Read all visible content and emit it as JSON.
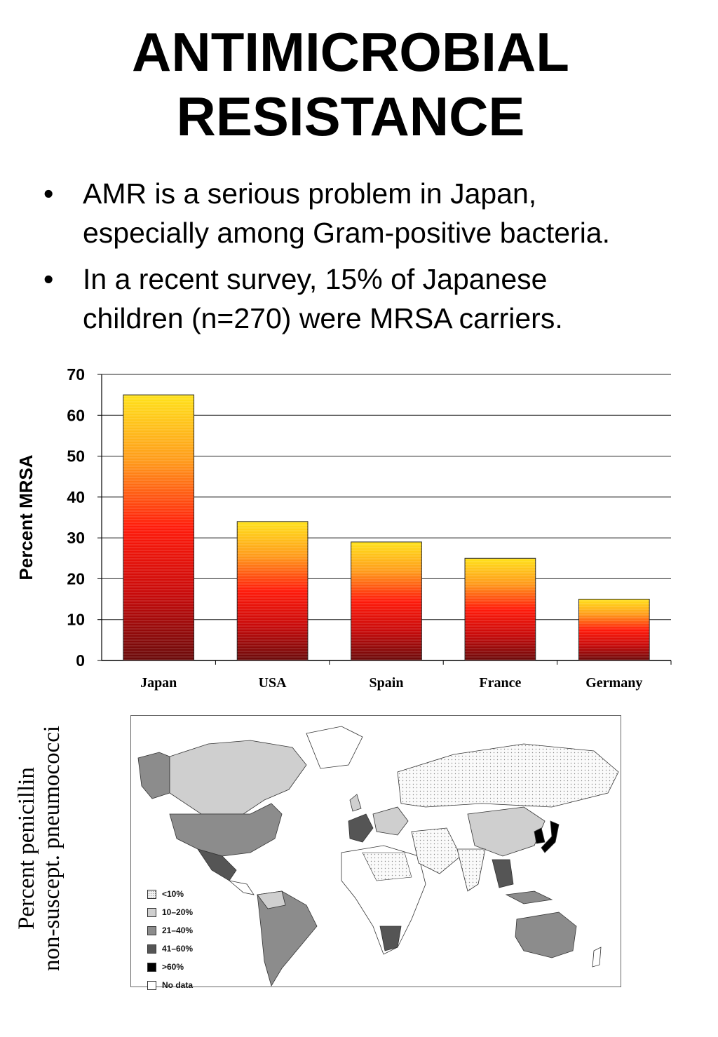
{
  "page": {
    "title_line1": "ANTIMICROBIAL",
    "title_line2": "RESISTANCE",
    "bullets": [
      {
        "line1": "AMR is a serious problem in Japan,",
        "line2": "especially among Gram-positive bacteria."
      },
      {
        "line1": "In a recent survey, 15% of Japanese",
        "line2": "children (n=270) were MRSA carriers."
      }
    ],
    "bullet_char": "•"
  },
  "chart_data": {
    "type": "bar",
    "categories": [
      "Japan",
      "USA",
      "Spain",
      "France",
      "Germany"
    ],
    "values": [
      65,
      34,
      29,
      25,
      15
    ],
    "title": "",
    "xlabel": "",
    "ylabel": "Percent MRSA",
    "ylim": [
      0,
      70
    ],
    "yticks": [
      0,
      10,
      20,
      30,
      40,
      50,
      60,
      70
    ],
    "grid": true,
    "bar_gradient": [
      "#ffe21a",
      "#ff9a1a",
      "#ff1a0a",
      "#c80a0a",
      "#6a0a0a"
    ]
  },
  "map": {
    "side_label_line1": "Percent penicillin",
    "side_label_line2": "non-suscept. pneumococci",
    "legend": [
      {
        "label": "<10%",
        "color": "#f2f2f2",
        "pattern": "dots"
      },
      {
        "label": "10–20%",
        "color": "#cfcfcf",
        "pattern": "none"
      },
      {
        "label": "21–40%",
        "color": "#8c8c8c",
        "pattern": "none"
      },
      {
        "label": "41–60%",
        "color": "#555555",
        "pattern": "none"
      },
      {
        "label": ">60%",
        "color": "#000000",
        "pattern": "none"
      },
      {
        "label": "No data",
        "color": "#ffffff",
        "pattern": "none"
      }
    ]
  }
}
